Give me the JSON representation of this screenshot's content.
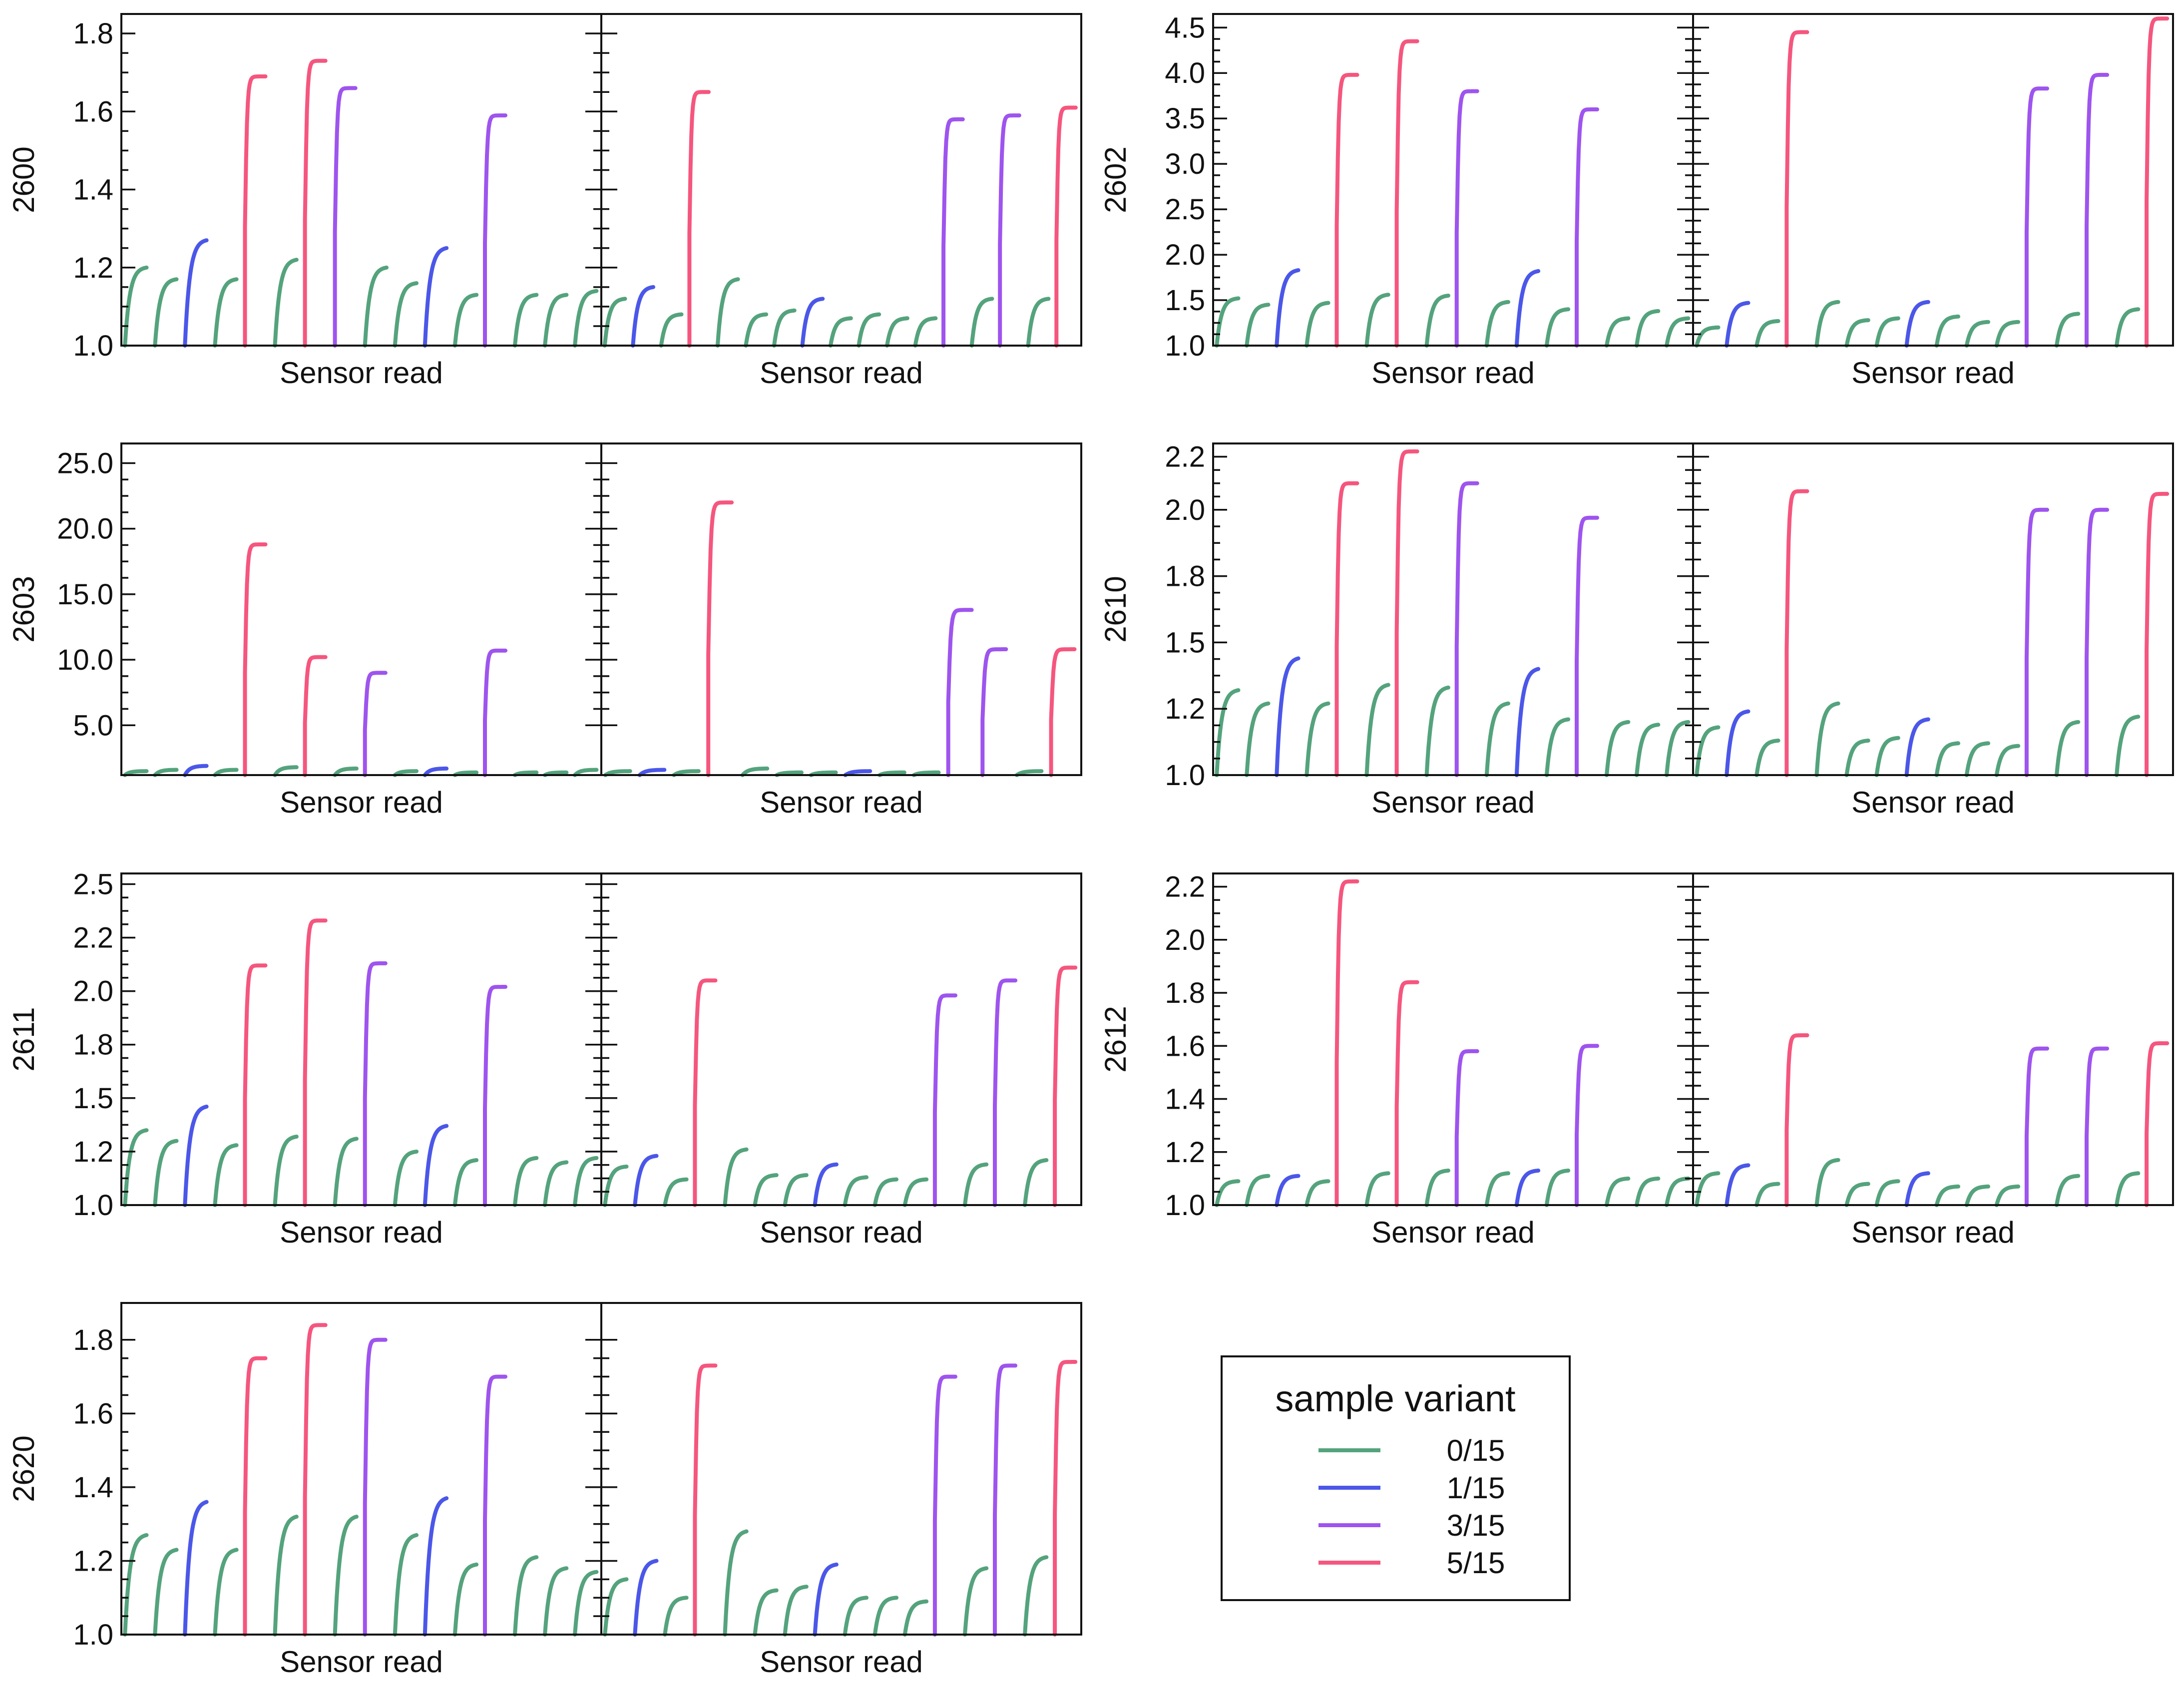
{
  "chart_data": {
    "type": "line",
    "x_label": "Sensor read",
    "legend": {
      "title": "sample variant",
      "placement": "bottom-right",
      "entries": [
        {
          "name": "0/15",
          "color": "#54a37c"
        },
        {
          "name": "1/15",
          "color": "#4b57e8"
        },
        {
          "name": "3/15",
          "color": "#9e54ee"
        },
        {
          "name": "5/15",
          "color": "#f5567e"
        }
      ]
    },
    "panels": [
      {
        "ylabel": "2600",
        "ylim": [
          1.0,
          1.85
        ],
        "yticks": [
          "1.0",
          "1.2",
          "1.4",
          "1.6",
          "1.8"
        ],
        "ytick_values": [
          1.0,
          1.2,
          1.4,
          1.6,
          1.8
        ],
        "left_reads": [
          [
            0,
            1.2
          ],
          [
            0,
            1.17
          ],
          [
            1,
            1.27
          ],
          [
            0,
            1.17
          ],
          [
            3,
            1.69
          ],
          [
            0,
            1.22
          ],
          [
            3,
            1.73
          ],
          [
            2,
            1.66
          ],
          [
            0,
            1.2
          ],
          [
            0,
            1.16
          ],
          [
            1,
            1.25
          ],
          [
            0,
            1.13
          ],
          [
            2,
            1.59
          ],
          [
            0,
            1.13
          ],
          [
            0,
            1.13
          ],
          [
            0,
            1.14
          ]
        ],
        "right_reads": [
          [
            0,
            1.12
          ],
          [
            1,
            1.15
          ],
          [
            0,
            1.08
          ],
          [
            3,
            1.65
          ],
          [
            0,
            1.17
          ],
          [
            0,
            1.08
          ],
          [
            0,
            1.09
          ],
          [
            1,
            1.12
          ],
          [
            0,
            1.07
          ],
          [
            0,
            1.08
          ],
          [
            0,
            1.07
          ],
          [
            0,
            1.07
          ],
          [
            2,
            1.58
          ],
          [
            0,
            1.12
          ],
          [
            2,
            1.59
          ],
          [
            0,
            1.12
          ],
          [
            3,
            1.61
          ]
        ]
      },
      {
        "ylabel": "2602",
        "ylim": [
          1.0,
          4.65
        ],
        "yticks": [
          "1.0",
          "1.5",
          "2.0",
          "2.5",
          "3.0",
          "3.5",
          "4.0",
          "4.5"
        ],
        "ytick_values": [
          1.0,
          1.5,
          2.0,
          2.5,
          3.0,
          3.5,
          4.0,
          4.5
        ],
        "left_reads": [
          [
            0,
            1.52
          ],
          [
            0,
            1.45
          ],
          [
            1,
            1.83
          ],
          [
            0,
            1.47
          ],
          [
            3,
            3.98
          ],
          [
            0,
            1.56
          ],
          [
            3,
            4.35
          ],
          [
            0,
            1.55
          ],
          [
            2,
            3.8
          ],
          [
            0,
            1.48
          ],
          [
            1,
            1.82
          ],
          [
            0,
            1.4
          ],
          [
            2,
            3.6
          ],
          [
            0,
            1.3
          ],
          [
            0,
            1.38
          ],
          [
            0,
            1.3
          ]
        ],
        "right_reads": [
          [
            0,
            1.2
          ],
          [
            1,
            1.47
          ],
          [
            0,
            1.27
          ],
          [
            3,
            4.45
          ],
          [
            0,
            1.48
          ],
          [
            0,
            1.28
          ],
          [
            0,
            1.3
          ],
          [
            1,
            1.48
          ],
          [
            0,
            1.32
          ],
          [
            0,
            1.26
          ],
          [
            0,
            1.26
          ],
          [
            2,
            3.83
          ],
          [
            0,
            1.35
          ],
          [
            2,
            3.98
          ],
          [
            0,
            1.4
          ],
          [
            3,
            4.6
          ]
        ]
      },
      {
        "ylabel": "2603",
        "ylim": [
          1.2,
          26.5
        ],
        "yticks": [
          "5.0",
          "10.0",
          "15.0",
          "20.0",
          "25.0"
        ],
        "ytick_values": [
          5.0,
          10.0,
          15.0,
          20.0,
          25.0
        ],
        "left_reads": [
          [
            0,
            1.5
          ],
          [
            0,
            1.6
          ],
          [
            1,
            1.9
          ],
          [
            0,
            1.6
          ],
          [
            3,
            18.8
          ],
          [
            0,
            1.8
          ],
          [
            3,
            10.2
          ],
          [
            0,
            1.7
          ],
          [
            2,
            9.0
          ],
          [
            0,
            1.5
          ],
          [
            1,
            1.7
          ],
          [
            0,
            1.4
          ],
          [
            2,
            10.7
          ],
          [
            0,
            1.4
          ],
          [
            0,
            1.4
          ],
          [
            0,
            1.6
          ]
        ],
        "right_reads": [
          [
            0,
            1.5
          ],
          [
            1,
            1.6
          ],
          [
            0,
            1.5
          ],
          [
            3,
            22.0
          ],
          [
            0,
            1.7
          ],
          [
            0,
            1.4
          ],
          [
            0,
            1.4
          ],
          [
            1,
            1.5
          ],
          [
            0,
            1.4
          ],
          [
            0,
            1.4
          ],
          [
            2,
            13.8
          ],
          [
            2,
            10.8
          ],
          [
            0,
            1.5
          ],
          [
            3,
            10.8
          ]
        ]
      },
      {
        "ylabel": "2610",
        "ylim": [
          1.0,
          2.25
        ],
        "yticks": [
          "1.0",
          "1.2",
          "1.5",
          "1.8",
          "2.0",
          "2.2"
        ],
        "ytick_values": [
          1.0,
          1.25,
          1.5,
          1.75,
          2.0,
          2.2
        ],
        "left_reads": [
          [
            0,
            1.32
          ],
          [
            0,
            1.27
          ],
          [
            1,
            1.44
          ],
          [
            0,
            1.27
          ],
          [
            3,
            2.1
          ],
          [
            0,
            1.34
          ],
          [
            3,
            2.22
          ],
          [
            0,
            1.33
          ],
          [
            2,
            2.1
          ],
          [
            0,
            1.27
          ],
          [
            1,
            1.4
          ],
          [
            0,
            1.21
          ],
          [
            2,
            1.97
          ],
          [
            0,
            1.2
          ],
          [
            0,
            1.19
          ],
          [
            0,
            1.2
          ]
        ],
        "right_reads": [
          [
            0,
            1.18
          ],
          [
            1,
            1.24
          ],
          [
            0,
            1.13
          ],
          [
            3,
            2.07
          ],
          [
            0,
            1.27
          ],
          [
            0,
            1.13
          ],
          [
            0,
            1.14
          ],
          [
            1,
            1.21
          ],
          [
            0,
            1.12
          ],
          [
            0,
            1.12
          ],
          [
            0,
            1.11
          ],
          [
            2,
            2.0
          ],
          [
            0,
            1.2
          ],
          [
            2,
            2.0
          ],
          [
            0,
            1.22
          ],
          [
            3,
            2.06
          ]
        ]
      },
      {
        "ylabel": "2611",
        "ylim": [
          1.0,
          2.55
        ],
        "yticks": [
          "1.0",
          "1.2",
          "1.5",
          "1.8",
          "2.0",
          "2.2",
          "2.5"
        ],
        "ytick_values": [
          1.0,
          1.25,
          1.5,
          1.75,
          2.0,
          2.25,
          2.5
        ],
        "left_reads": [
          [
            0,
            1.35
          ],
          [
            0,
            1.3
          ],
          [
            1,
            1.46
          ],
          [
            0,
            1.28
          ],
          [
            3,
            2.12
          ],
          [
            0,
            1.32
          ],
          [
            3,
            2.33
          ],
          [
            0,
            1.31
          ],
          [
            2,
            2.13
          ],
          [
            0,
            1.25
          ],
          [
            1,
            1.37
          ],
          [
            0,
            1.21
          ],
          [
            2,
            2.02
          ],
          [
            0,
            1.22
          ],
          [
            0,
            1.2
          ],
          [
            0,
            1.22
          ]
        ],
        "right_reads": [
          [
            0,
            1.18
          ],
          [
            1,
            1.23
          ],
          [
            0,
            1.12
          ],
          [
            3,
            2.05
          ],
          [
            0,
            1.26
          ],
          [
            0,
            1.14
          ],
          [
            0,
            1.14
          ],
          [
            1,
            1.19
          ],
          [
            0,
            1.13
          ],
          [
            0,
            1.12
          ],
          [
            0,
            1.12
          ],
          [
            2,
            1.98
          ],
          [
            0,
            1.19
          ],
          [
            2,
            2.05
          ],
          [
            0,
            1.21
          ],
          [
            3,
            2.11
          ]
        ]
      },
      {
        "ylabel": "2612",
        "ylim": [
          1.0,
          2.25
        ],
        "yticks": [
          "1.0",
          "1.2",
          "1.4",
          "1.6",
          "1.8",
          "2.0",
          "2.2"
        ],
        "ytick_values": [
          1.0,
          1.2,
          1.4,
          1.6,
          1.8,
          2.0,
          2.2
        ],
        "left_reads": [
          [
            0,
            1.09
          ],
          [
            0,
            1.11
          ],
          [
            1,
            1.11
          ],
          [
            0,
            1.09
          ],
          [
            3,
            2.22
          ],
          [
            0,
            1.12
          ],
          [
            3,
            1.84
          ],
          [
            0,
            1.13
          ],
          [
            2,
            1.58
          ],
          [
            0,
            1.12
          ],
          [
            1,
            1.13
          ],
          [
            0,
            1.13
          ],
          [
            2,
            1.6
          ],
          [
            0,
            1.1
          ],
          [
            0,
            1.1
          ],
          [
            0,
            1.1
          ]
        ],
        "right_reads": [
          [
            0,
            1.12
          ],
          [
            1,
            1.15
          ],
          [
            0,
            1.08
          ],
          [
            3,
            1.64
          ],
          [
            0,
            1.17
          ],
          [
            0,
            1.08
          ],
          [
            0,
            1.09
          ],
          [
            1,
            1.12
          ],
          [
            0,
            1.07
          ],
          [
            0,
            1.07
          ],
          [
            0,
            1.07
          ],
          [
            2,
            1.59
          ],
          [
            0,
            1.11
          ],
          [
            2,
            1.59
          ],
          [
            0,
            1.12
          ],
          [
            3,
            1.61
          ]
        ]
      },
      {
        "ylabel": "2620",
        "ylim": [
          1.0,
          1.9
        ],
        "yticks": [
          "1.0",
          "1.2",
          "1.4",
          "1.6",
          "1.8"
        ],
        "ytick_values": [
          1.0,
          1.2,
          1.4,
          1.6,
          1.8
        ],
        "left_reads": [
          [
            0,
            1.27
          ],
          [
            0,
            1.23
          ],
          [
            1,
            1.36
          ],
          [
            0,
            1.23
          ],
          [
            3,
            1.75
          ],
          [
            0,
            1.32
          ],
          [
            3,
            1.84
          ],
          [
            0,
            1.32
          ],
          [
            2,
            1.8
          ],
          [
            0,
            1.27
          ],
          [
            1,
            1.37
          ],
          [
            0,
            1.19
          ],
          [
            2,
            1.7
          ],
          [
            0,
            1.21
          ],
          [
            0,
            1.18
          ],
          [
            0,
            1.17
          ]
        ],
        "right_reads": [
          [
            0,
            1.15
          ],
          [
            1,
            1.2
          ],
          [
            0,
            1.1
          ],
          [
            3,
            1.73
          ],
          [
            0,
            1.28
          ],
          [
            0,
            1.12
          ],
          [
            0,
            1.13
          ],
          [
            1,
            1.19
          ],
          [
            0,
            1.1
          ],
          [
            0,
            1.1
          ],
          [
            0,
            1.09
          ],
          [
            2,
            1.7
          ],
          [
            0,
            1.18
          ],
          [
            2,
            1.73
          ],
          [
            0,
            1.21
          ],
          [
            3,
            1.74
          ]
        ]
      }
    ]
  }
}
